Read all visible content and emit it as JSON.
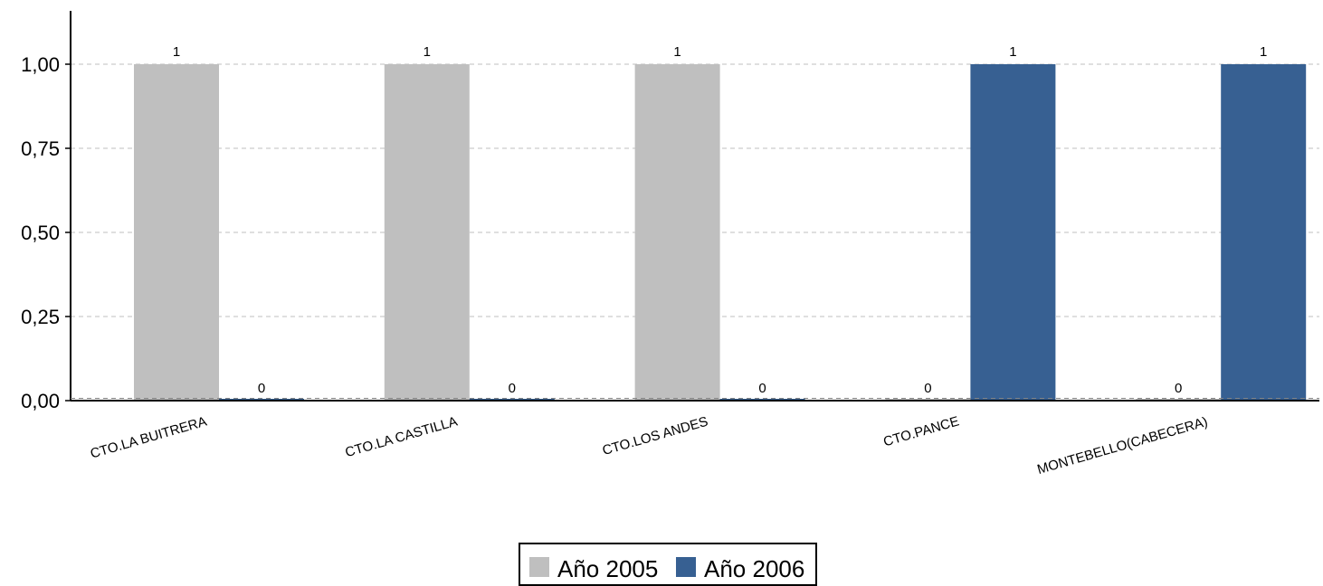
{
  "chart_data": {
    "type": "bar",
    "categories": [
      "CTO.LA BUITRERA",
      "CTO.LA CASTILLA",
      "CTO.LOS ANDES",
      "CTO.PANCE",
      "MONTEBELLO(CABECERA)"
    ],
    "series": [
      {
        "name": "Año 2005",
        "values": [
          1,
          1,
          1,
          0,
          0
        ],
        "color": "#bfbfbf"
      },
      {
        "name": "Año 2006",
        "values": [
          0,
          0,
          0,
          1,
          1
        ],
        "color": "#376092"
      }
    ],
    "ylim": [
      0,
      1.15
    ],
    "yticks": [
      "0,00",
      "0,25",
      "0,50",
      "0,75",
      "1,00"
    ],
    "ytick_values": [
      0,
      0.25,
      0.5,
      0.75,
      1
    ],
    "grid": true,
    "legend_position": "bottom",
    "data_labels": true
  }
}
